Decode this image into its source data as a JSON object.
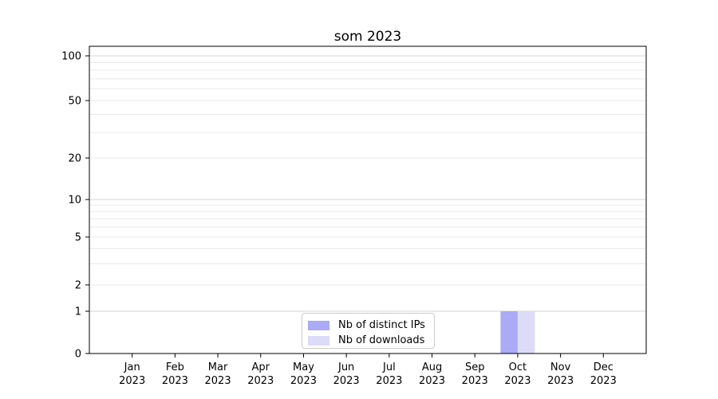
{
  "chart_data": {
    "type": "bar",
    "title": "som 2023",
    "categories": [
      {
        "month": "Jan",
        "year": "2023"
      },
      {
        "month": "Feb",
        "year": "2023"
      },
      {
        "month": "Mar",
        "year": "2023"
      },
      {
        "month": "Apr",
        "year": "2023"
      },
      {
        "month": "May",
        "year": "2023"
      },
      {
        "month": "Jun",
        "year": "2023"
      },
      {
        "month": "Jul",
        "year": "2023"
      },
      {
        "month": "Aug",
        "year": "2023"
      },
      {
        "month": "Sep",
        "year": "2023"
      },
      {
        "month": "Oct",
        "year": "2023"
      },
      {
        "month": "Nov",
        "year": "2023"
      },
      {
        "month": "Dec",
        "year": "2023"
      }
    ],
    "series": [
      {
        "name": "Nb of distinct IPs",
        "color": "#aaaaf6",
        "values": [
          0,
          0,
          0,
          0,
          0,
          0,
          0,
          0,
          0,
          1,
          0,
          0
        ]
      },
      {
        "name": "Nb of downloads",
        "color": "#dcdcf8",
        "values": [
          0,
          0,
          0,
          0,
          0,
          0,
          0,
          0,
          0,
          1,
          0,
          0
        ]
      }
    ],
    "yaxis": {
      "scale": "symlog",
      "ticks": [
        0,
        1,
        2,
        5,
        10,
        20,
        50,
        100
      ],
      "minor_gridlines": [
        3,
        4,
        6,
        7,
        8,
        9,
        30,
        40,
        60,
        70,
        80,
        90
      ],
      "major_gridlines": [
        1,
        10,
        100
      ],
      "range": [
        0,
        100
      ]
    },
    "grid": true,
    "legend_position": "lower center",
    "colors": {
      "major_grid": "#d6d6d6",
      "minor_grid": "#eaeaea",
      "axis": "#000000",
      "text": "#000000"
    }
  }
}
